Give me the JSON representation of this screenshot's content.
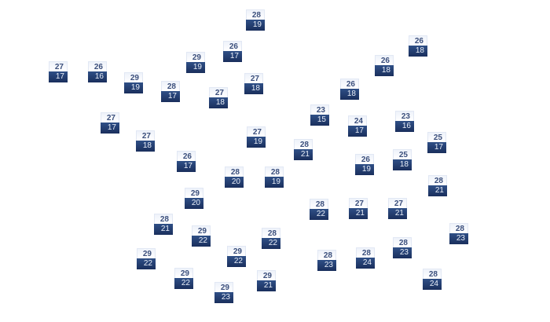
{
  "colors": {
    "high_bg": "#f4f7fc",
    "high_text": "#3b4f7c",
    "low_bg": "#24406f",
    "low_text": "#e8eef8"
  },
  "stations": [
    {
      "high": "28",
      "low": "19"
    },
    {
      "high": "26",
      "low": "17"
    },
    {
      "high": "29",
      "low": "19"
    },
    {
      "high": "27",
      "low": "17"
    },
    {
      "high": "26",
      "low": "16"
    },
    {
      "high": "29",
      "low": "19"
    },
    {
      "high": "28",
      "low": "17"
    },
    {
      "high": "27",
      "low": "18"
    },
    {
      "high": "27",
      "low": "18"
    },
    {
      "high": "27",
      "low": "17"
    },
    {
      "high": "27",
      "low": "18"
    },
    {
      "high": "27",
      "low": "19"
    },
    {
      "high": "26",
      "low": "17"
    },
    {
      "high": "26",
      "low": "18"
    },
    {
      "high": "26",
      "low": "18"
    },
    {
      "high": "26",
      "low": "18"
    },
    {
      "high": "23",
      "low": "15"
    },
    {
      "high": "24",
      "low": "17"
    },
    {
      "high": "23",
      "low": "16"
    },
    {
      "high": "25",
      "low": "17"
    },
    {
      "high": "28",
      "low": "21"
    },
    {
      "high": "26",
      "low": "19"
    },
    {
      "high": "25",
      "low": "18"
    },
    {
      "high": "28",
      "low": "20"
    },
    {
      "high": "28",
      "low": "19"
    },
    {
      "high": "29",
      "low": "20"
    },
    {
      "high": "28",
      "low": "21"
    },
    {
      "high": "29",
      "low": "22"
    },
    {
      "high": "28",
      "low": "22"
    },
    {
      "high": "29",
      "low": "22"
    },
    {
      "high": "29",
      "low": "22"
    },
    {
      "high": "29",
      "low": "22"
    },
    {
      "high": "29",
      "low": "23"
    },
    {
      "high": "29",
      "low": "21"
    },
    {
      "high": "28",
      "low": "22"
    },
    {
      "high": "28",
      "low": "21"
    },
    {
      "high": "27",
      "low": "21"
    },
    {
      "high": "27",
      "low": "21"
    },
    {
      "high": "28",
      "low": "23"
    },
    {
      "high": "28",
      "low": "23"
    },
    {
      "high": "28",
      "low": "24"
    },
    {
      "high": "28",
      "low": "23"
    },
    {
      "high": "28",
      "low": "24"
    }
  ]
}
